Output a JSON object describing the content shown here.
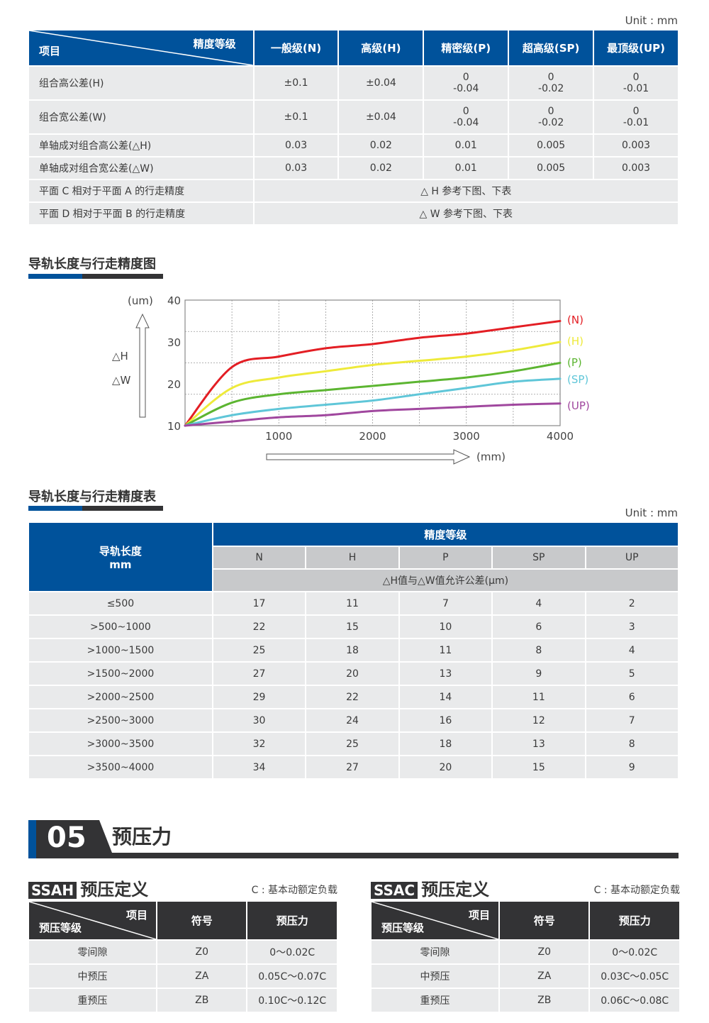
{
  "top_table": {
    "unit": "Unit : mm",
    "header": {
      "corner_top_right": "精度等级",
      "corner_bottom_left": "项目",
      "columns": [
        "一般级(N)",
        "高级(H)",
        "精密级(P)",
        "超高级(SP)",
        "最顶级(UP)"
      ]
    },
    "rows": [
      {
        "label": "组合高公差(H)",
        "values": [
          [
            "±0.1"
          ],
          [
            "±0.04"
          ],
          [
            "0",
            "-0.04"
          ],
          [
            "0",
            "-0.02"
          ],
          [
            "0",
            "-0.01"
          ]
        ]
      },
      {
        "label": "组合宽公差(W)",
        "values": [
          [
            "±0.1"
          ],
          [
            "±0.04"
          ],
          [
            "0",
            "-0.04"
          ],
          [
            "0",
            "-0.02"
          ],
          [
            "0",
            "-0.01"
          ]
        ]
      },
      {
        "label": "单轴成对组合高公差(△H)",
        "values": [
          [
            "0.03"
          ],
          [
            "0.02"
          ],
          [
            "0.01"
          ],
          [
            "0.005"
          ],
          [
            "0.003"
          ]
        ]
      },
      {
        "label": "单轴成对组合宽公差(△W)",
        "values": [
          [
            "0.03"
          ],
          [
            "0.02"
          ],
          [
            "0.01"
          ],
          [
            "0.005"
          ],
          [
            "0.003"
          ]
        ]
      },
      {
        "label": "平面 C 相对于平面 A 的行走精度",
        "merged": "△ H 参考下图、下表"
      },
      {
        "label": "平面 D 相对于平面 B 的行走精度",
        "merged": "△ W 参考下图、下表"
      }
    ]
  },
  "chart_section": {
    "title": "导轨长度与行走精度图"
  },
  "chart_data": {
    "type": "line",
    "title": "导轨长度与行走精度图",
    "xlabel": "(mm)",
    "ylabel": "(um)",
    "y_side_labels": [
      "△H",
      "△W"
    ],
    "xlim": [
      0,
      4000
    ],
    "ylim": [
      10,
      40
    ],
    "x_ticks": [
      1000,
      2000,
      3000,
      4000
    ],
    "y_ticks": [
      10,
      20,
      30,
      40
    ],
    "grid": true,
    "legend_position": "right",
    "x": [
      0,
      500,
      1000,
      1500,
      2000,
      2500,
      3000,
      3500,
      4000
    ],
    "series": [
      {
        "name": "(N)",
        "color": "#e31e24",
        "values": [
          10,
          24,
          26.5,
          28.5,
          29.5,
          31,
          32,
          33.5,
          35
        ]
      },
      {
        "name": "(H)",
        "color": "#eeea3a",
        "values": [
          10,
          19,
          21.5,
          23,
          24.5,
          25.5,
          26.5,
          28,
          30
        ]
      },
      {
        "name": "(P)",
        "color": "#5cb531",
        "values": [
          10,
          15.5,
          17.5,
          18.5,
          19.5,
          20.5,
          21.5,
          23,
          25
        ]
      },
      {
        "name": "(SP)",
        "color": "#5fc6d8",
        "values": [
          10,
          12.5,
          14,
          15,
          16,
          17.5,
          19,
          20.5,
          21.2
        ]
      },
      {
        "name": "(UP)",
        "color": "#a0479e",
        "values": [
          10,
          11,
          12,
          12.5,
          13.5,
          14,
          14.5,
          15,
          15.3
        ]
      }
    ]
  },
  "accuracy_table": {
    "title": "导轨长度与行走精度表",
    "unit": "Unit : mm",
    "header": {
      "rail_length_label": "导轨长度",
      "rail_length_unit": "mm",
      "grade_label": "精度等级",
      "grades": [
        "N",
        "H",
        "P",
        "SP",
        "UP"
      ],
      "tolerance_label": "△H值与△W值允许公差(μm)"
    },
    "rows": [
      {
        "length": "≤500",
        "values": [
          "17",
          "11",
          "7",
          "4",
          "2"
        ]
      },
      {
        "length": ">500~1000",
        "values": [
          "22",
          "15",
          "10",
          "6",
          "3"
        ]
      },
      {
        "length": ">1000~1500",
        "values": [
          "25",
          "18",
          "11",
          "8",
          "4"
        ]
      },
      {
        "length": ">1500~2000",
        "values": [
          "27",
          "20",
          "13",
          "9",
          "5"
        ]
      },
      {
        "length": ">2000~2500",
        "values": [
          "29",
          "22",
          "14",
          "11",
          "6"
        ]
      },
      {
        "length": ">2500~3000",
        "values": [
          "30",
          "24",
          "16",
          "12",
          "7"
        ]
      },
      {
        "length": ">3000~3500",
        "values": [
          "32",
          "25",
          "18",
          "13",
          "8"
        ]
      },
      {
        "length": ">3500~4000",
        "values": [
          "34",
          "27",
          "20",
          "15",
          "9"
        ]
      }
    ]
  },
  "preload_section": {
    "number": "05",
    "title": "预压力"
  },
  "preload_tables": [
    {
      "tag": "SSAH",
      "title": "预压定义",
      "note": "C : 基本动额定负载",
      "header": {
        "corner_top_right": "项目",
        "corner_bottom_left": "预压等级",
        "symbol": "符号",
        "preload": "预压力"
      },
      "rows": [
        {
          "grade": "零间隙",
          "symbol": "Z0",
          "preload": "0～0.02C"
        },
        {
          "grade": "中预压",
          "symbol": "ZA",
          "preload": "0.05C～0.07C"
        },
        {
          "grade": "重预压",
          "symbol": "ZB",
          "preload": "0.10C～0.12C"
        }
      ]
    },
    {
      "tag": "SSAC",
      "title": "预压定义",
      "note": "C : 基本动额定负载",
      "header": {
        "corner_top_right": "项目",
        "corner_bottom_left": "预压等级",
        "symbol": "符号",
        "preload": "预压力"
      },
      "rows": [
        {
          "grade": "零间隙",
          "symbol": "Z0",
          "preload": "0～0.02C"
        },
        {
          "grade": "中预压",
          "symbol": "ZA",
          "preload": "0.03C～0.05C"
        },
        {
          "grade": "重预压",
          "symbol": "ZB",
          "preload": "0.06C～0.08C"
        }
      ]
    }
  ],
  "colors": {
    "brand_blue": "#00529b",
    "dark": "#333335",
    "cell_gray": "#e9eaeb",
    "header_gray": "#c8c9cb"
  }
}
